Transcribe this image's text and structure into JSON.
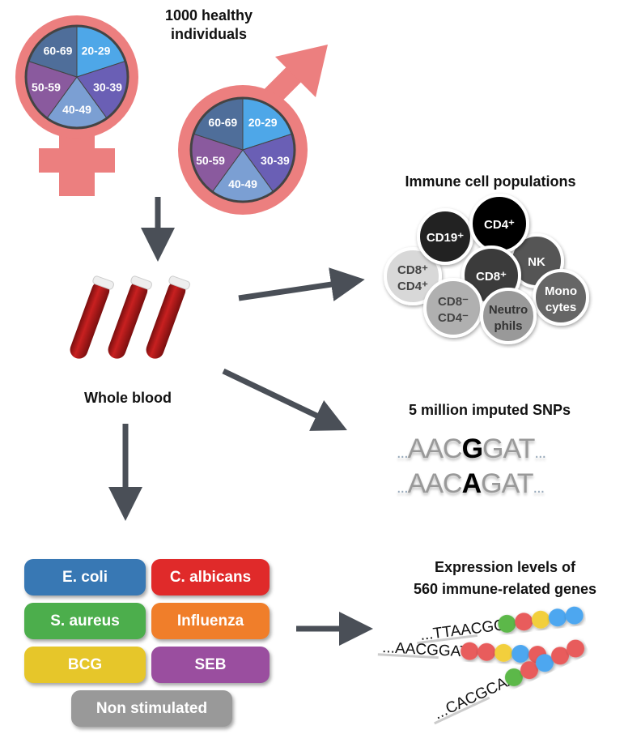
{
  "title": "1000 healthy individuals",
  "age_groups": [
    "20-29",
    "30-39",
    "40-49",
    "50-59",
    "60-69"
  ],
  "age_colors": [
    "#4ea7e8",
    "#6a5fb5",
    "#7b9fd3",
    "#8a5a9e",
    "#4f6e9a"
  ],
  "sex_symbol_color": "#ec7f7f",
  "arrow_color": "#4a4f57",
  "whole_blood": "Whole blood",
  "immune": {
    "title": "Immune cell populations",
    "cells": [
      {
        "label": "CD8⁺",
        "label2": "CD4⁺",
        "color": "#d8d8d8",
        "text": "#444"
      },
      {
        "label": "CD19⁺",
        "color": "#222",
        "text": "#fff"
      },
      {
        "label": "NK",
        "color": "#555",
        "text": "#fff"
      },
      {
        "label": "CD4⁺",
        "color": "#000",
        "text": "#fff"
      },
      {
        "label": "CD8⁺",
        "color": "#3a3a3a",
        "text": "#fff"
      },
      {
        "label": "CD8⁻",
        "label2": "CD4⁻",
        "color": "#b0b0b0",
        "text": "#444"
      },
      {
        "label": "Mono",
        "label2": "cytes",
        "color": "#666",
        "text": "#fff"
      },
      {
        "label": "Neutro",
        "label2": "phils",
        "color": "#999",
        "text": "#333"
      }
    ]
  },
  "snps": {
    "title": "5 million imputed SNPs",
    "rows": [
      {
        "prefix": "AAC",
        "allele": "G",
        "suffix": "GAT"
      },
      {
        "prefix": "AAC",
        "allele": "A",
        "suffix": "GAT"
      }
    ],
    "ellipsis": "..."
  },
  "stimuli": [
    {
      "label": "E. coli",
      "color": "#3878b4"
    },
    {
      "label": "C. albicans",
      "color": "#e02a2a"
    },
    {
      "label": "S. aureus",
      "color": "#4cae4c"
    },
    {
      "label": "Influenza",
      "color": "#f07e2a"
    },
    {
      "label": "BCG",
      "color": "#e6c62a"
    },
    {
      "label": "SEB",
      "color": "#9a4e9f"
    },
    {
      "label": "Non stimulated",
      "color": "#999999"
    }
  ],
  "expression": {
    "title_line1": "Expression levels of",
    "title_line2": "560 immune-related genes",
    "strands": [
      {
        "seq": "...TTAACGG",
        "beads": [
          "#5cb84a",
          "#e85c5c",
          "#f2cf3c",
          "#4ea7f0",
          "#4ea7f0"
        ]
      },
      {
        "seq": "...AACGGAT",
        "beads": [
          "#e85c5c",
          "#e85c5c",
          "#f2cf3c",
          "#4ea7f0",
          "#e85c5c"
        ]
      },
      {
        "seq": "...CACGCAA",
        "beads": [
          "#5cb84a",
          "#e85c5c",
          "#4ea7f0",
          "#e85c5c",
          "#e85c5c"
        ]
      }
    ]
  }
}
